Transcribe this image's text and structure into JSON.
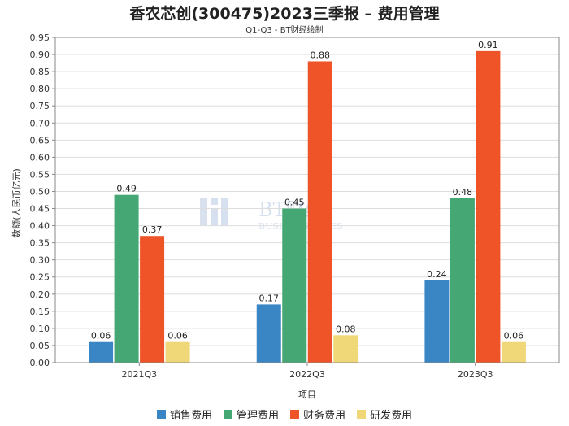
{
  "header": {
    "title": "香农芯创(300475)2023三季报 – 费用管理",
    "subtitle": "Q1-Q3 - BT财经绘制"
  },
  "watermark": {
    "cn": "BT财经",
    "en": "BUSINESS TIMES"
  },
  "chart_data": {
    "type": "bar",
    "categories": [
      "2021Q3",
      "2022Q3",
      "2023Q3"
    ],
    "series": [
      {
        "name": "销售费用",
        "color": "#3a85c3",
        "values": [
          0.06,
          0.17,
          0.24
        ]
      },
      {
        "name": "管理费用",
        "color": "#45a874",
        "values": [
          0.49,
          0.45,
          0.48
        ]
      },
      {
        "name": "财务费用",
        "color": "#ef5428",
        "values": [
          0.37,
          0.88,
          0.91
        ]
      },
      {
        "name": "研发费用",
        "color": "#f0d778",
        "values": [
          0.06,
          0.08,
          0.06
        ]
      }
    ],
    "xlabel": "项目",
    "ylabel": "数额(人民币亿元)",
    "ylim": [
      0,
      0.95
    ],
    "yticks": [
      "0.00",
      "0.05",
      "0.10",
      "0.15",
      "0.20",
      "0.25",
      "0.30",
      "0.35",
      "0.40",
      "0.45",
      "0.50",
      "0.55",
      "0.60",
      "0.65",
      "0.70",
      "0.75",
      "0.80",
      "0.85",
      "0.90",
      "0.95"
    ],
    "grid": true,
    "legend_position": "bottom"
  }
}
